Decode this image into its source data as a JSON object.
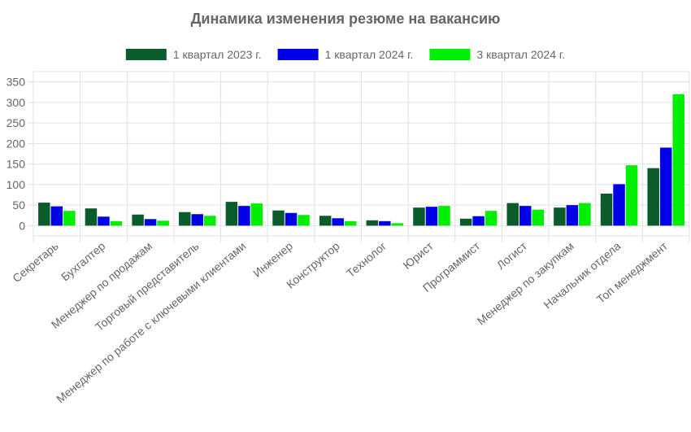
{
  "chart_data": {
    "type": "bar",
    "title": "Динамика изменения резюме на вакансию",
    "xlabel": "",
    "ylabel": "",
    "ylim": [
      -25,
      375
    ],
    "yticks": [
      0,
      50,
      100,
      150,
      200,
      250,
      300,
      350
    ],
    "grid": true,
    "legend_position": "top",
    "categories": [
      "Секретарь",
      "Бухгалтер",
      "Менеджер по продажам",
      "Торговый представитель",
      "Менеджер по работе с ключевыми клиентами",
      "Инженер",
      "Конструктор",
      "Технолог",
      "Юрист",
      "Программист",
      "Логист",
      "Менеджер по закупкам",
      "Начальник отдела",
      "Топ менеджмент"
    ],
    "series": [
      {
        "name": "1 квартал 2023 г.",
        "color": "#0a5c2a",
        "values": [
          56,
          42,
          27,
          33,
          58,
          37,
          24,
          13,
          44,
          17,
          55,
          44,
          78,
          140
        ]
      },
      {
        "name": "1 квартал 2024 г.",
        "color": "#0000e6",
        "values": [
          47,
          22,
          16,
          28,
          48,
          31,
          18,
          11,
          46,
          23,
          48,
          50,
          101,
          190
        ]
      },
      {
        "name": "3 квартал 2024 г.",
        "color": "#00ee00",
        "values": [
          36,
          11,
          12,
          24,
          54,
          26,
          11,
          6,
          48,
          36,
          39,
          55,
          147,
          320
        ]
      }
    ]
  }
}
